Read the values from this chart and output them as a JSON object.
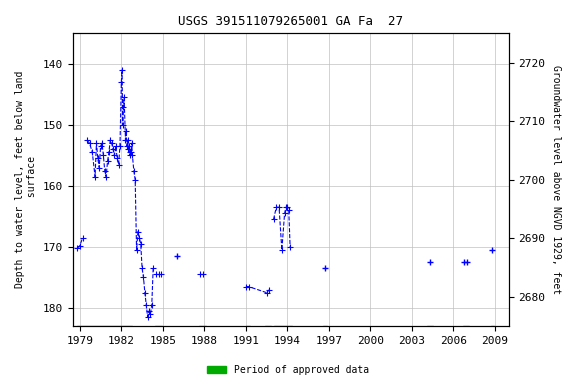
{
  "title": "USGS 391511079265001 GA Fa  27",
  "ylabel_left": "Depth to water level, feet below land\n surface",
  "ylabel_right": "Groundwater level above NGVD 1929, feet",
  "ylim_left": [
    183,
    135
  ],
  "ylim_right": [
    2675,
    2725
  ],
  "xlim": [
    1978.5,
    2010.0
  ],
  "xticks": [
    1979,
    1982,
    1985,
    1988,
    1991,
    1994,
    1997,
    2000,
    2003,
    2006,
    2009
  ],
  "yticks_left": [
    140,
    150,
    160,
    170,
    180
  ],
  "yticks_right": [
    2680,
    2690,
    2700,
    2710,
    2720
  ],
  "background_color": "#ffffff",
  "plot_bg_color": "#ffffff",
  "grid_color": "#c0c0c0",
  "line_color": "#0000ff",
  "green_color": "#00aa00",
  "legend_label": "Period of approved data",
  "segments": [
    [
      [
        1978.83,
        1979.0,
        1979.2
      ],
      [
        170.2,
        169.8,
        168.5
      ]
    ],
    [
      [
        1979.5,
        1979.7,
        1979.9,
        1980.1,
        1980.2,
        1980.3,
        1980.4,
        1980.5,
        1980.6,
        1980.7,
        1980.8,
        1980.9,
        1981.0,
        1981.1,
        1981.2,
        1981.3,
        1981.4,
        1981.5,
        1981.6,
        1981.7,
        1981.8,
        1981.9,
        1982.0,
        1982.05,
        1982.1,
        1982.15,
        1982.2,
        1982.3,
        1982.35,
        1982.4,
        1982.45,
        1982.5,
        1982.55,
        1982.6,
        1982.65,
        1982.7,
        1982.75,
        1982.8,
        1982.9,
        1983.0,
        1983.1,
        1983.2,
        1983.3,
        1983.4,
        1983.5,
        1983.6,
        1983.7,
        1983.8,
        1983.9,
        1984.0,
        1984.1,
        1984.2,
        1984.3
      ],
      [
        152.5,
        153.0,
        154.5,
        158.5,
        153.0,
        155.5,
        157.0,
        153.5,
        153.0,
        155.0,
        157.5,
        158.5,
        156.0,
        154.5,
        152.5,
        153.0,
        154.0,
        155.0,
        153.5,
        155.5,
        156.5,
        153.5,
        143.0,
        141.0,
        150.0,
        147.0,
        145.5,
        152.5,
        151.0,
        153.5,
        152.5,
        154.0,
        153.5,
        155.0,
        154.5,
        154.5,
        153.0,
        155.0,
        157.5,
        159.0,
        170.5,
        167.5,
        168.5,
        169.5,
        173.5,
        175.0,
        177.5,
        179.5,
        181.5,
        180.5,
        181.0,
        179.5,
        173.5
      ]
    ],
    [
      [
        1984.5,
        1984.7,
        1984.9
      ],
      [
        174.5,
        174.5,
        174.5
      ]
    ],
    [
      [
        1987.7,
        1987.9
      ],
      [
        174.5,
        174.5
      ]
    ],
    [
      [
        1991.0,
        1991.2,
        1992.5,
        1992.7
      ],
      [
        176.5,
        176.5,
        177.5,
        177.0
      ]
    ],
    [
      [
        1993.0,
        1993.2,
        1993.4,
        1993.6,
        1993.8,
        1993.9,
        1994.0,
        1994.1,
        1994.2
      ],
      [
        165.5,
        163.5,
        163.5,
        170.5,
        164.5,
        163.5,
        163.5,
        164.0,
        170.0
      ]
    ]
  ],
  "isolated_points": [
    [
      1986.0,
      171.5
    ],
    [
      1996.7,
      173.5
    ],
    [
      2004.3,
      172.5
    ],
    [
      2006.8,
      172.5
    ],
    [
      2007.0,
      172.5
    ],
    [
      2008.8,
      170.5
    ]
  ],
  "approved_bars": [
    [
      1978.83,
      1982.8
    ],
    [
      1984.4,
      1984.95
    ],
    [
      1987.6,
      1988.1
    ],
    [
      1991.0,
      1991.3
    ],
    [
      1992.4,
      1992.8
    ],
    [
      1993.0,
      1994.3
    ],
    [
      1996.6,
      1996.85
    ],
    [
      2004.1,
      2004.5
    ],
    [
      2006.7,
      2007.1
    ],
    [
      2008.7,
      2008.95
    ]
  ]
}
